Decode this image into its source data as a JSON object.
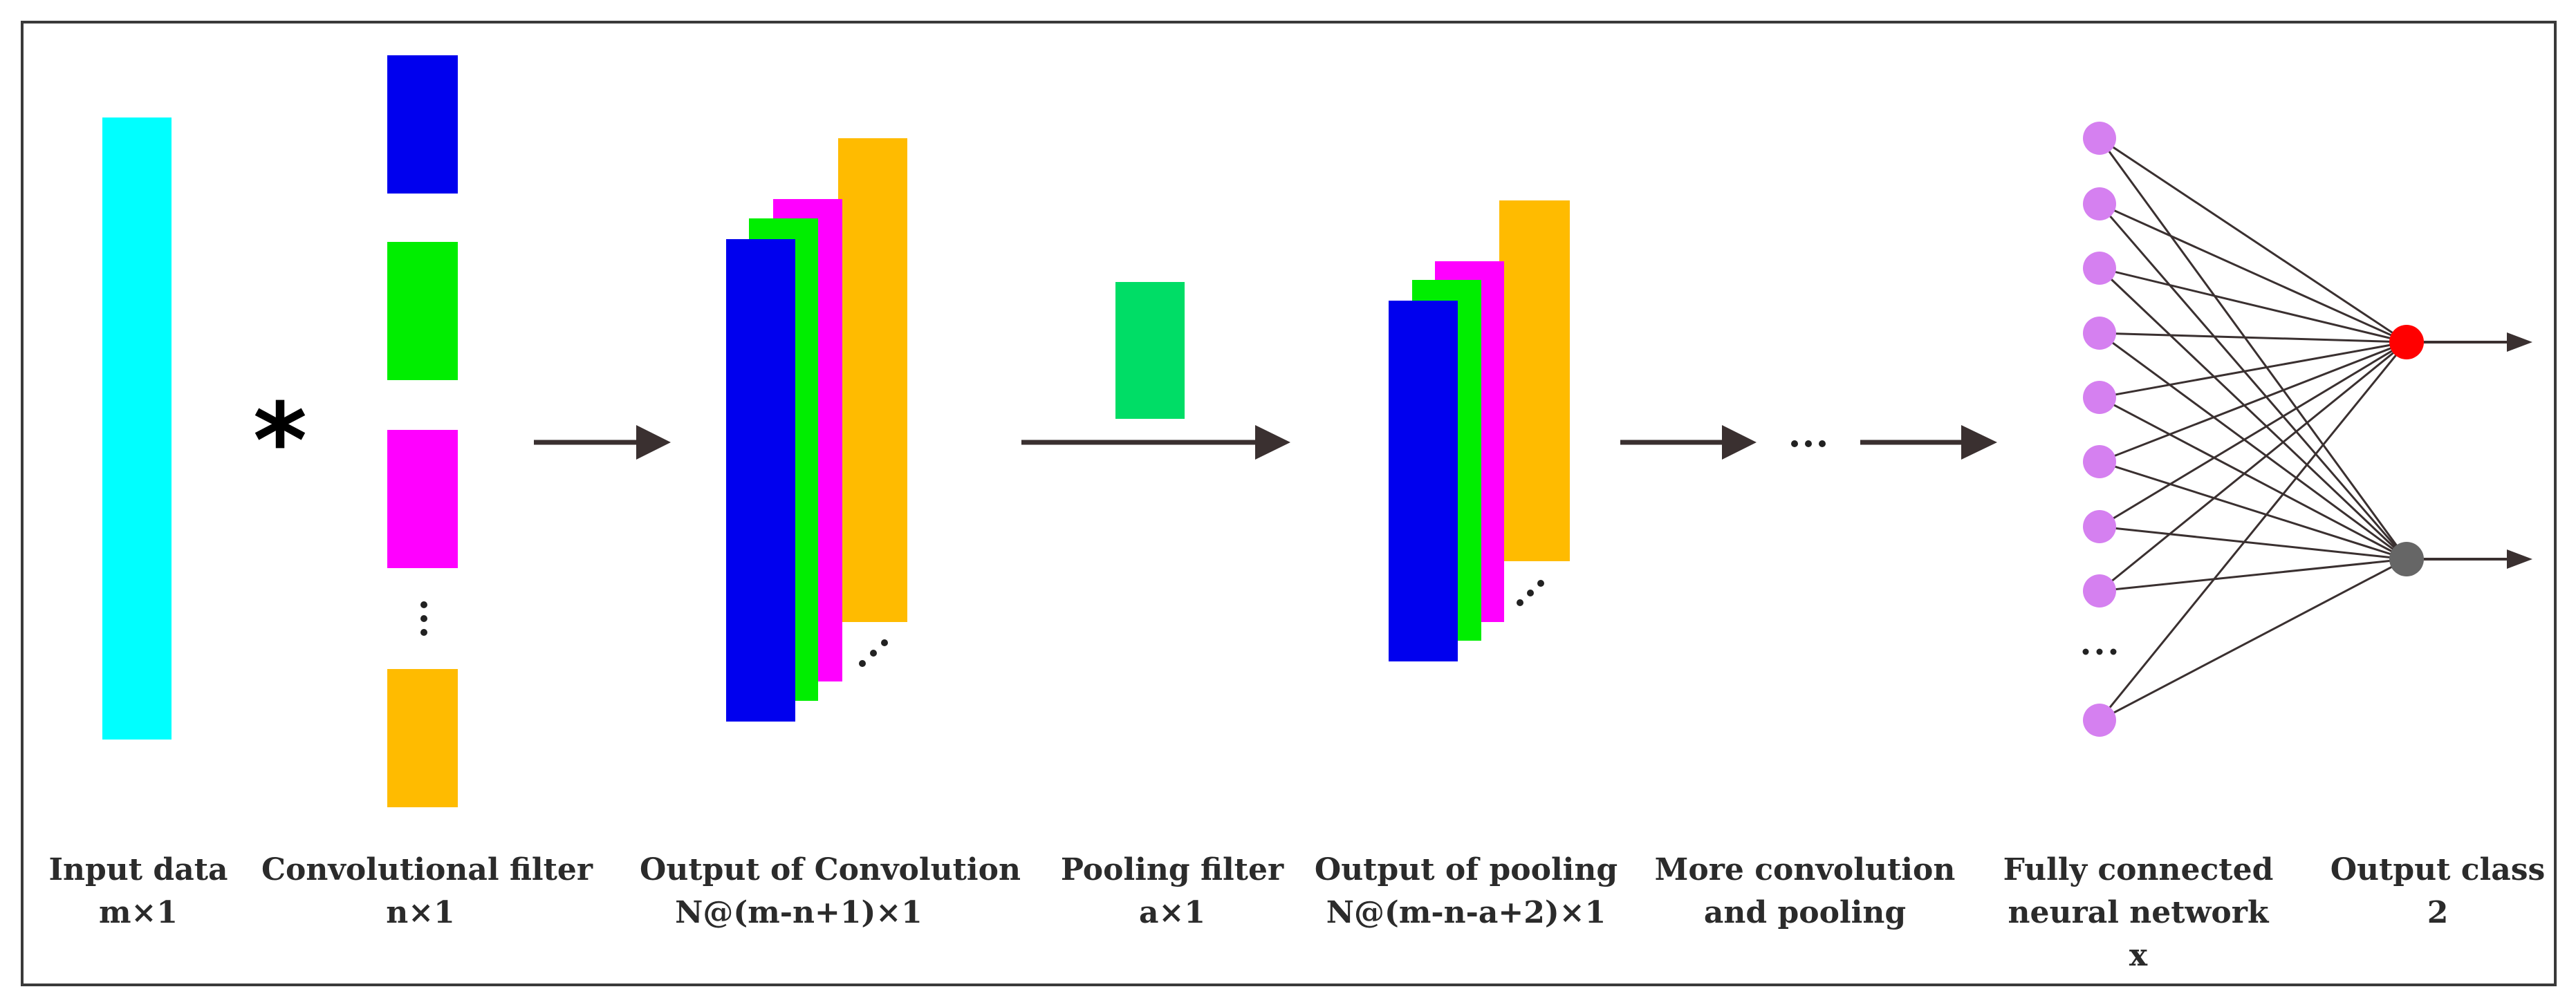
{
  "colors": {
    "input": "#00ffff",
    "blue": "#0000ee",
    "green": "#00ee00",
    "magenta": "#ff00ff",
    "orange": "#ffbb00",
    "pool": "#00dd66",
    "node": "#d580f0",
    "out1": "#ff0000",
    "out2": "#666666",
    "arrow": "#3a3030",
    "border": "#3a3a3a"
  },
  "symbols": {
    "conv_operator": "*",
    "ellipsis": "⋯",
    "vellipsis": "⋮",
    "dellipsis": "⋰"
  },
  "labels": {
    "input": {
      "line1": "Input data",
      "line2": "m×1"
    },
    "filter": {
      "line1": "Convolutional filter",
      "line2": "n×1"
    },
    "convout": {
      "line1": "Output of Convolution",
      "line2": "N@(m-n+1)×1"
    },
    "pool": {
      "line1": "Pooling filter",
      "line2": "a×1"
    },
    "poolout": {
      "line1": "Output of pooling",
      "line2": "N@(m-n-a+2)×1"
    },
    "more": {
      "line1": "More convolution",
      "line2": "and pooling"
    },
    "fc": {
      "line1": "Fully connected",
      "line2": "neural network",
      "line3": "x"
    },
    "output": {
      "line1": "Output class",
      "line2": "2"
    }
  },
  "network": {
    "hidden_nodes_shown": 9,
    "output_nodes": 2
  }
}
